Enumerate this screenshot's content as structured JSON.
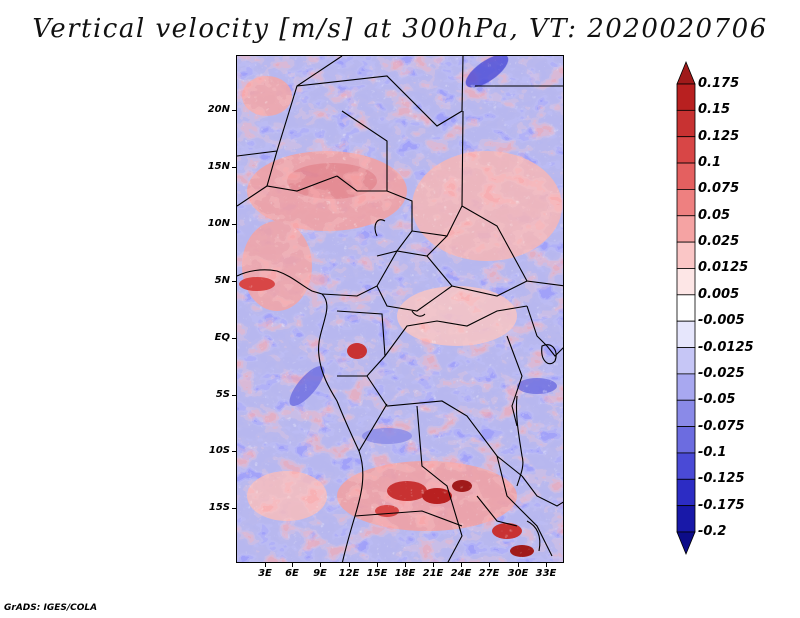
{
  "title": "Vertical velocity [m/s] at 300hPa, VT: 2020020706",
  "credit": "GrADS: IGES/COLA",
  "map": {
    "lat_labels": [
      "20N",
      "15N",
      "10N",
      "5N",
      "EQ",
      "5S",
      "10S",
      "15S"
    ],
    "lon_labels": [
      "3E",
      "6E",
      "9E",
      "12E",
      "15E",
      "18E",
      "21E",
      "24E",
      "27E",
      "30E",
      "33E"
    ]
  },
  "colorbar": {
    "levels": [
      "0.175",
      "0.15",
      "0.125",
      "0.1",
      "0.075",
      "0.05",
      "0.025",
      "0.0125",
      "0.005",
      "-0.005",
      "-0.0125",
      "-0.025",
      "-0.05",
      "-0.075",
      "-0.1",
      "-0.125",
      "-0.175",
      "-0.2"
    ],
    "colors": [
      "#a01a1a",
      "#b82020",
      "#c83232",
      "#d84646",
      "#e46060",
      "#ee8080",
      "#f5a3a3",
      "#fac6c6",
      "#fde6e6",
      "#ffffff",
      "#e6e6fc",
      "#c6c6f6",
      "#a8a8f0",
      "#8a8ae8",
      "#6c6ce0",
      "#4a4ad6",
      "#2c2cc4",
      "#1818a8",
      "#0c0c88"
    ]
  },
  "colors": {
    "coast": "#000000",
    "frame": "#000000"
  }
}
